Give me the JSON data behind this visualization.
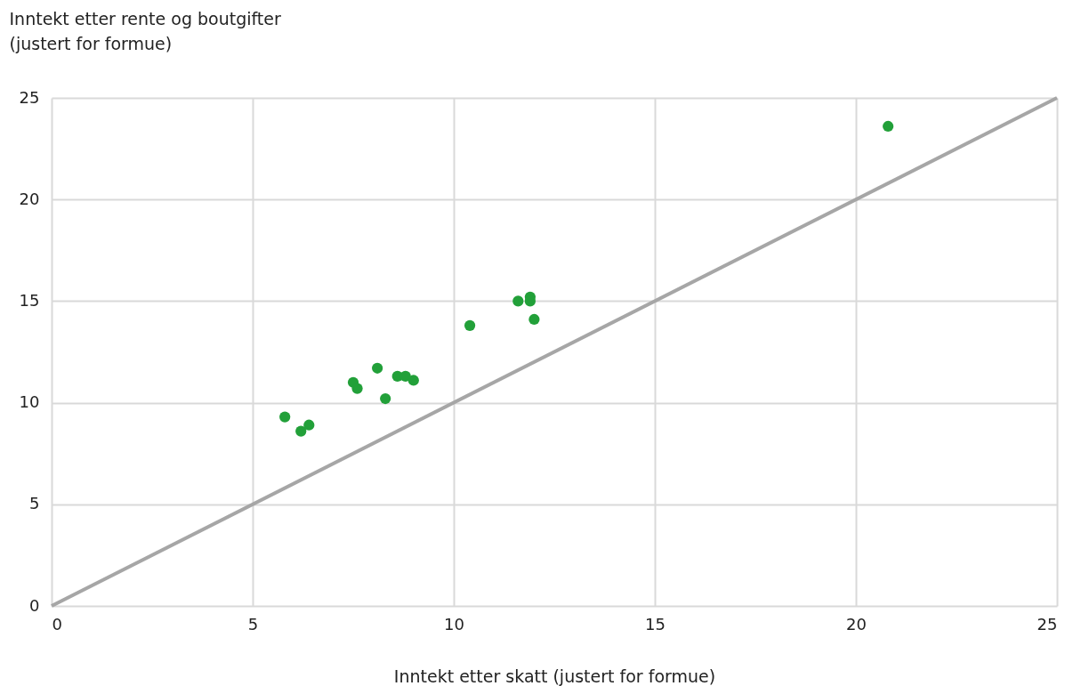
{
  "chart_data": {
    "type": "scatter",
    "xlabel": "Inntekt etter skatt (justert for formue)",
    "ylabel": "Inntekt etter rente og boutgifter\n(justert for formue)",
    "xlim": [
      0,
      25
    ],
    "xticks": [
      0,
      5,
      10,
      15,
      20,
      25
    ],
    "ylim": [
      0,
      25
    ],
    "yticks": [
      0,
      5,
      10,
      15,
      20,
      25
    ],
    "grid": true,
    "series": [
      {
        "type": "line",
        "color": "#a6a6a6",
        "x": [
          0,
          25
        ],
        "values": [
          0,
          25
        ]
      },
      {
        "type": "scatter",
        "marker": "circle",
        "color": "#22a039",
        "x": [
          5.8,
          6.2,
          6.4,
          7.5,
          7.6,
          8.1,
          8.3,
          8.6,
          8.8,
          9.0,
          10.4,
          11.6,
          11.9,
          11.9,
          12.0,
          20.8
        ],
        "values": [
          9.3,
          8.6,
          8.9,
          11.0,
          10.7,
          11.7,
          10.2,
          11.3,
          11.3,
          11.1,
          13.8,
          15.0,
          15.2,
          15.0,
          14.1,
          23.6
        ]
      }
    ]
  }
}
